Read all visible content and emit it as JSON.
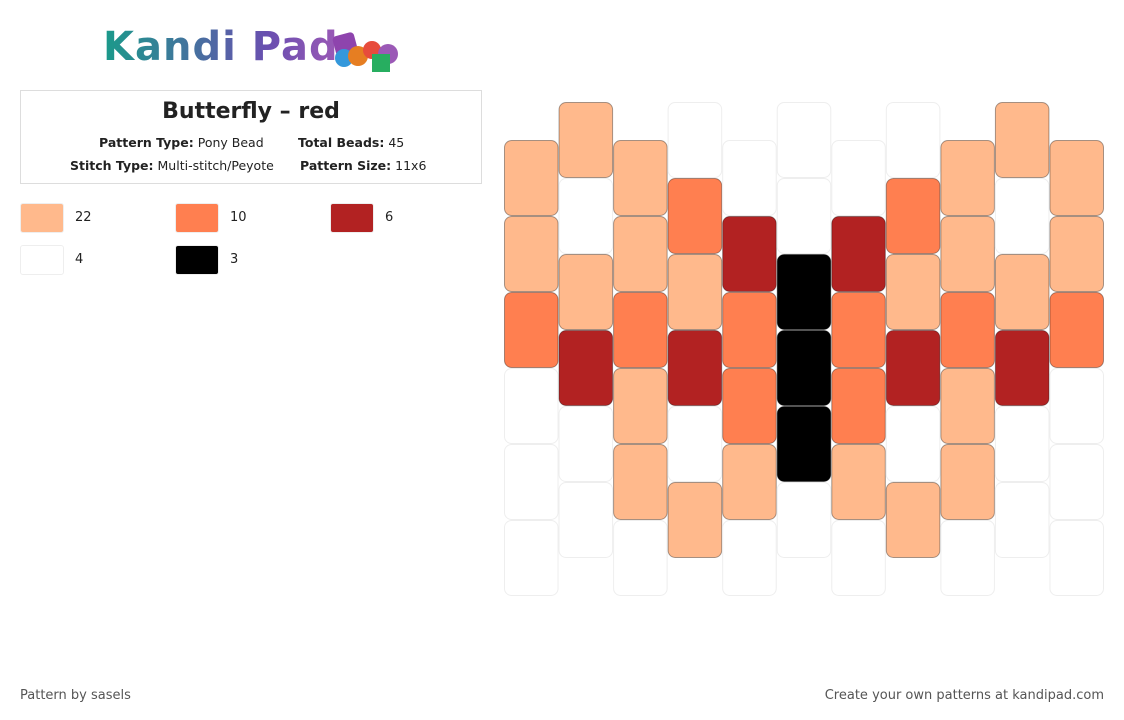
{
  "logo": "Kandi Pad",
  "header": {
    "title": "Butterfly – red",
    "fields": [
      {
        "label": "Pattern Type:",
        "value": "Pony Bead"
      },
      {
        "label": "Total Beads:",
        "value": "45"
      },
      {
        "label": "Stitch Type:",
        "value": "Multi-stitch/Peyote"
      },
      {
        "label": "Pattern Size:",
        "value": "11x6"
      }
    ]
  },
  "legend": [
    {
      "color": "#ffb98c",
      "count": 22
    },
    {
      "color": "#ff7f50",
      "count": 10
    },
    {
      "color": "#b22222",
      "count": 6
    },
    {
      "color": "#ffffff",
      "count": 4
    },
    {
      "color": "#000000",
      "count": 3
    }
  ],
  "grid": {
    "columns": [
      [
        "#ffb98c",
        "#ffb98c",
        "#ff7f50",
        "#ffffff",
        "#ffffff",
        "#ffffff"
      ],
      [
        "#ffb98c",
        "#ffffff",
        "#ffb98c",
        "#b22222",
        "#ffffff",
        "#ffffff"
      ],
      [
        "#ffb98c",
        "#ffb98c",
        "#ff7f50",
        "#ffb98c",
        "#ffb98c",
        "#ffffff"
      ],
      [
        "#ffffff",
        "#ff7f50",
        "#ffb98c",
        "#b22222",
        "#ffffff",
        "#ffb98c"
      ],
      [
        "#ffffff",
        "#b22222",
        "#ff7f50",
        "#ff7f50",
        "#ffb98c",
        "#ffffff"
      ],
      [
        "#ffffff",
        "#ffffff",
        "#000000",
        "#000000",
        "#000000",
        "#ffffff"
      ],
      [
        "#ffffff",
        "#b22222",
        "#ff7f50",
        "#ff7f50",
        "#ffb98c",
        "#ffffff"
      ],
      [
        "#ffffff",
        "#ff7f50",
        "#ffb98c",
        "#b22222",
        "#ffffff",
        "#ffb98c"
      ],
      [
        "#ffb98c",
        "#ffb98c",
        "#ff7f50",
        "#ffb98c",
        "#ffb98c",
        "#ffffff"
      ],
      [
        "#ffb98c",
        "#ffffff",
        "#ffb98c",
        "#b22222",
        "#ffffff",
        "#ffffff"
      ],
      [
        "#ffb98c",
        "#ffb98c",
        "#ff7f50",
        "#ffffff",
        "#ffffff",
        "#ffffff"
      ]
    ]
  },
  "footer": {
    "left": "Pattern by sasels",
    "right": "Create your own patterns at kandipad.com"
  }
}
